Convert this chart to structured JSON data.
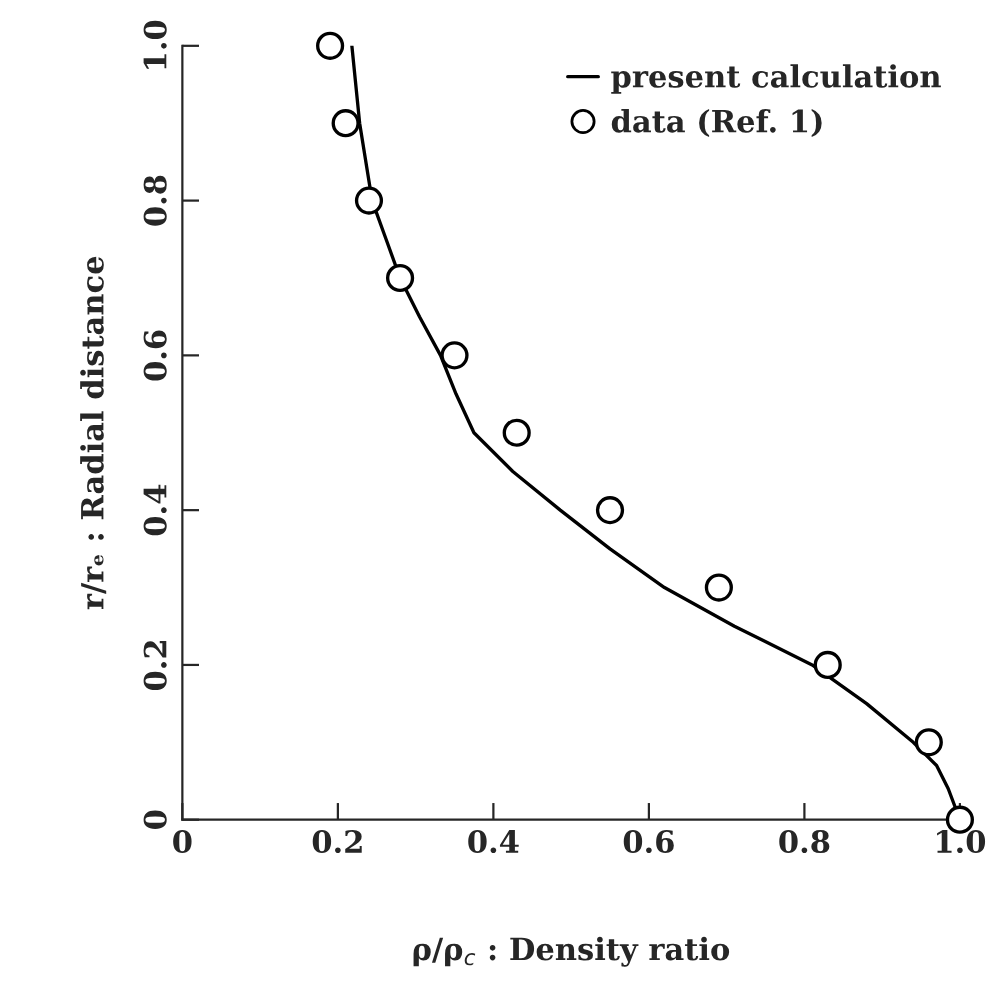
{
  "chart_data": {
    "type": "scatter",
    "xlabel": "ρ/ρ$_{c}$ : Density ratio",
    "ylabel": "r/rₑ : Radial distance",
    "series": [
      {
        "name": "present calculation",
        "type": "line",
        "color": "#000000",
        "marker": "none",
        "line_style": "solid",
        "x": [
          0.218,
          0.228,
          0.244,
          0.262,
          0.28,
          0.305,
          0.332,
          0.352,
          0.375,
          0.425,
          0.486,
          0.55,
          0.62,
          0.71,
          0.81,
          0.88,
          0.94,
          0.97,
          0.985,
          1.0
        ],
        "values": [
          1.0,
          0.9,
          0.8,
          0.75,
          0.7,
          0.65,
          0.6,
          0.55,
          0.5,
          0.45,
          0.4,
          0.35,
          0.3,
          0.25,
          0.2,
          0.15,
          0.1,
          0.07,
          0.04,
          0.0
        ]
      },
      {
        "name": "data (Ref. 1)",
        "color": "#000000",
        "marker": "circle",
        "x": [
          0.19,
          0.21,
          0.24,
          0.28,
          0.35,
          0.43,
          0.55,
          0.69,
          0.83,
          0.96,
          1.0
        ],
        "values": [
          1.0,
          0.9,
          0.8,
          0.7,
          0.6,
          0.5,
          0.4,
          0.3,
          0.2,
          0.1,
          0.0
        ]
      }
    ],
    "xlim": [
      0,
      1.0
    ],
    "ylim": [
      0,
      1.0
    ],
    "xticks": [
      0,
      0.2,
      0.4,
      0.6,
      0.8,
      {
        "value": 1.0,
        "label": "1.0"
      }
    ],
    "yticks": [
      0,
      0.2,
      0.4,
      0.6,
      0.8,
      {
        "value": 1.0,
        "label": "1.0"
      }
    ],
    "grid": false,
    "legend": "top right"
  }
}
